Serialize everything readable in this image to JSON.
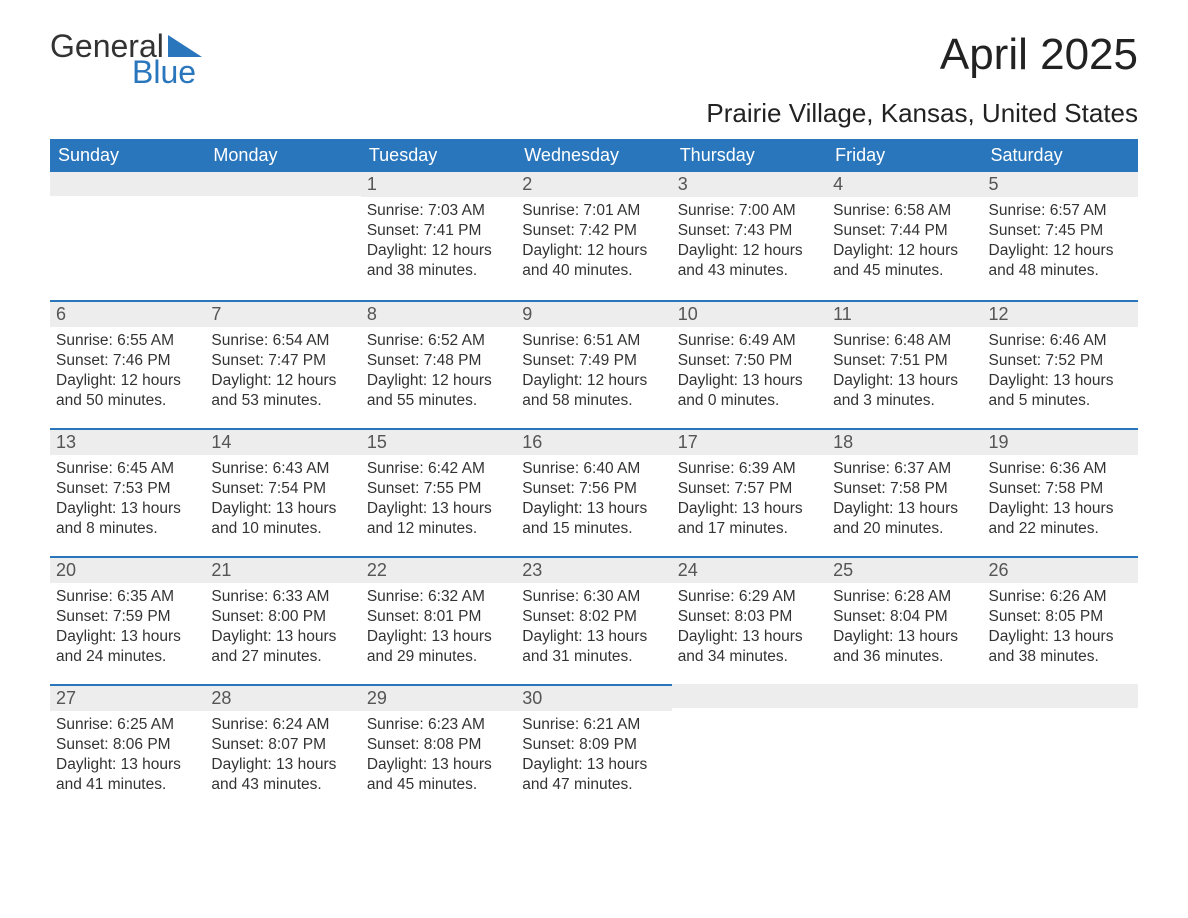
{
  "logo": {
    "general": "General",
    "blue": "Blue",
    "tri_color": "#2976bc"
  },
  "title": "April 2025",
  "location": "Prairie Village, Kansas, United States",
  "colors": {
    "header_bg": "#2976bc",
    "header_text": "#ffffff",
    "daynum_bg": "#ededed",
    "daynum_border": "#2976bc",
    "body_text": "#333333",
    "page_bg": "#ffffff"
  },
  "day_headers": [
    "Sunday",
    "Monday",
    "Tuesday",
    "Wednesday",
    "Thursday",
    "Friday",
    "Saturday"
  ],
  "weeks": [
    [
      {
        "n": "",
        "sr": "",
        "ss": "",
        "dl": ""
      },
      {
        "n": "",
        "sr": "",
        "ss": "",
        "dl": ""
      },
      {
        "n": "1",
        "sr": "Sunrise: 7:03 AM",
        "ss": "Sunset: 7:41 PM",
        "dl": "Daylight: 12 hours and 38 minutes."
      },
      {
        "n": "2",
        "sr": "Sunrise: 7:01 AM",
        "ss": "Sunset: 7:42 PM",
        "dl": "Daylight: 12 hours and 40 minutes."
      },
      {
        "n": "3",
        "sr": "Sunrise: 7:00 AM",
        "ss": "Sunset: 7:43 PM",
        "dl": "Daylight: 12 hours and 43 minutes."
      },
      {
        "n": "4",
        "sr": "Sunrise: 6:58 AM",
        "ss": "Sunset: 7:44 PM",
        "dl": "Daylight: 12 hours and 45 minutes."
      },
      {
        "n": "5",
        "sr": "Sunrise: 6:57 AM",
        "ss": "Sunset: 7:45 PM",
        "dl": "Daylight: 12 hours and 48 minutes."
      }
    ],
    [
      {
        "n": "6",
        "sr": "Sunrise: 6:55 AM",
        "ss": "Sunset: 7:46 PM",
        "dl": "Daylight: 12 hours and 50 minutes."
      },
      {
        "n": "7",
        "sr": "Sunrise: 6:54 AM",
        "ss": "Sunset: 7:47 PM",
        "dl": "Daylight: 12 hours and 53 minutes."
      },
      {
        "n": "8",
        "sr": "Sunrise: 6:52 AM",
        "ss": "Sunset: 7:48 PM",
        "dl": "Daylight: 12 hours and 55 minutes."
      },
      {
        "n": "9",
        "sr": "Sunrise: 6:51 AM",
        "ss": "Sunset: 7:49 PM",
        "dl": "Daylight: 12 hours and 58 minutes."
      },
      {
        "n": "10",
        "sr": "Sunrise: 6:49 AM",
        "ss": "Sunset: 7:50 PM",
        "dl": "Daylight: 13 hours and 0 minutes."
      },
      {
        "n": "11",
        "sr": "Sunrise: 6:48 AM",
        "ss": "Sunset: 7:51 PM",
        "dl": "Daylight: 13 hours and 3 minutes."
      },
      {
        "n": "12",
        "sr": "Sunrise: 6:46 AM",
        "ss": "Sunset: 7:52 PM",
        "dl": "Daylight: 13 hours and 5 minutes."
      }
    ],
    [
      {
        "n": "13",
        "sr": "Sunrise: 6:45 AM",
        "ss": "Sunset: 7:53 PM",
        "dl": "Daylight: 13 hours and 8 minutes."
      },
      {
        "n": "14",
        "sr": "Sunrise: 6:43 AM",
        "ss": "Sunset: 7:54 PM",
        "dl": "Daylight: 13 hours and 10 minutes."
      },
      {
        "n": "15",
        "sr": "Sunrise: 6:42 AM",
        "ss": "Sunset: 7:55 PM",
        "dl": "Daylight: 13 hours and 12 minutes."
      },
      {
        "n": "16",
        "sr": "Sunrise: 6:40 AM",
        "ss": "Sunset: 7:56 PM",
        "dl": "Daylight: 13 hours and 15 minutes."
      },
      {
        "n": "17",
        "sr": "Sunrise: 6:39 AM",
        "ss": "Sunset: 7:57 PM",
        "dl": "Daylight: 13 hours and 17 minutes."
      },
      {
        "n": "18",
        "sr": "Sunrise: 6:37 AM",
        "ss": "Sunset: 7:58 PM",
        "dl": "Daylight: 13 hours and 20 minutes."
      },
      {
        "n": "19",
        "sr": "Sunrise: 6:36 AM",
        "ss": "Sunset: 7:58 PM",
        "dl": "Daylight: 13 hours and 22 minutes."
      }
    ],
    [
      {
        "n": "20",
        "sr": "Sunrise: 6:35 AM",
        "ss": "Sunset: 7:59 PM",
        "dl": "Daylight: 13 hours and 24 minutes."
      },
      {
        "n": "21",
        "sr": "Sunrise: 6:33 AM",
        "ss": "Sunset: 8:00 PM",
        "dl": "Daylight: 13 hours and 27 minutes."
      },
      {
        "n": "22",
        "sr": "Sunrise: 6:32 AM",
        "ss": "Sunset: 8:01 PM",
        "dl": "Daylight: 13 hours and 29 minutes."
      },
      {
        "n": "23",
        "sr": "Sunrise: 6:30 AM",
        "ss": "Sunset: 8:02 PM",
        "dl": "Daylight: 13 hours and 31 minutes."
      },
      {
        "n": "24",
        "sr": "Sunrise: 6:29 AM",
        "ss": "Sunset: 8:03 PM",
        "dl": "Daylight: 13 hours and 34 minutes."
      },
      {
        "n": "25",
        "sr": "Sunrise: 6:28 AM",
        "ss": "Sunset: 8:04 PM",
        "dl": "Daylight: 13 hours and 36 minutes."
      },
      {
        "n": "26",
        "sr": "Sunrise: 6:26 AM",
        "ss": "Sunset: 8:05 PM",
        "dl": "Daylight: 13 hours and 38 minutes."
      }
    ],
    [
      {
        "n": "27",
        "sr": "Sunrise: 6:25 AM",
        "ss": "Sunset: 8:06 PM",
        "dl": "Daylight: 13 hours and 41 minutes."
      },
      {
        "n": "28",
        "sr": "Sunrise: 6:24 AM",
        "ss": "Sunset: 8:07 PM",
        "dl": "Daylight: 13 hours and 43 minutes."
      },
      {
        "n": "29",
        "sr": "Sunrise: 6:23 AM",
        "ss": "Sunset: 8:08 PM",
        "dl": "Daylight: 13 hours and 45 minutes."
      },
      {
        "n": "30",
        "sr": "Sunrise: 6:21 AM",
        "ss": "Sunset: 8:09 PM",
        "dl": "Daylight: 13 hours and 47 minutes."
      },
      {
        "n": "",
        "sr": "",
        "ss": "",
        "dl": ""
      },
      {
        "n": "",
        "sr": "",
        "ss": "",
        "dl": ""
      },
      {
        "n": "",
        "sr": "",
        "ss": "",
        "dl": ""
      }
    ]
  ]
}
